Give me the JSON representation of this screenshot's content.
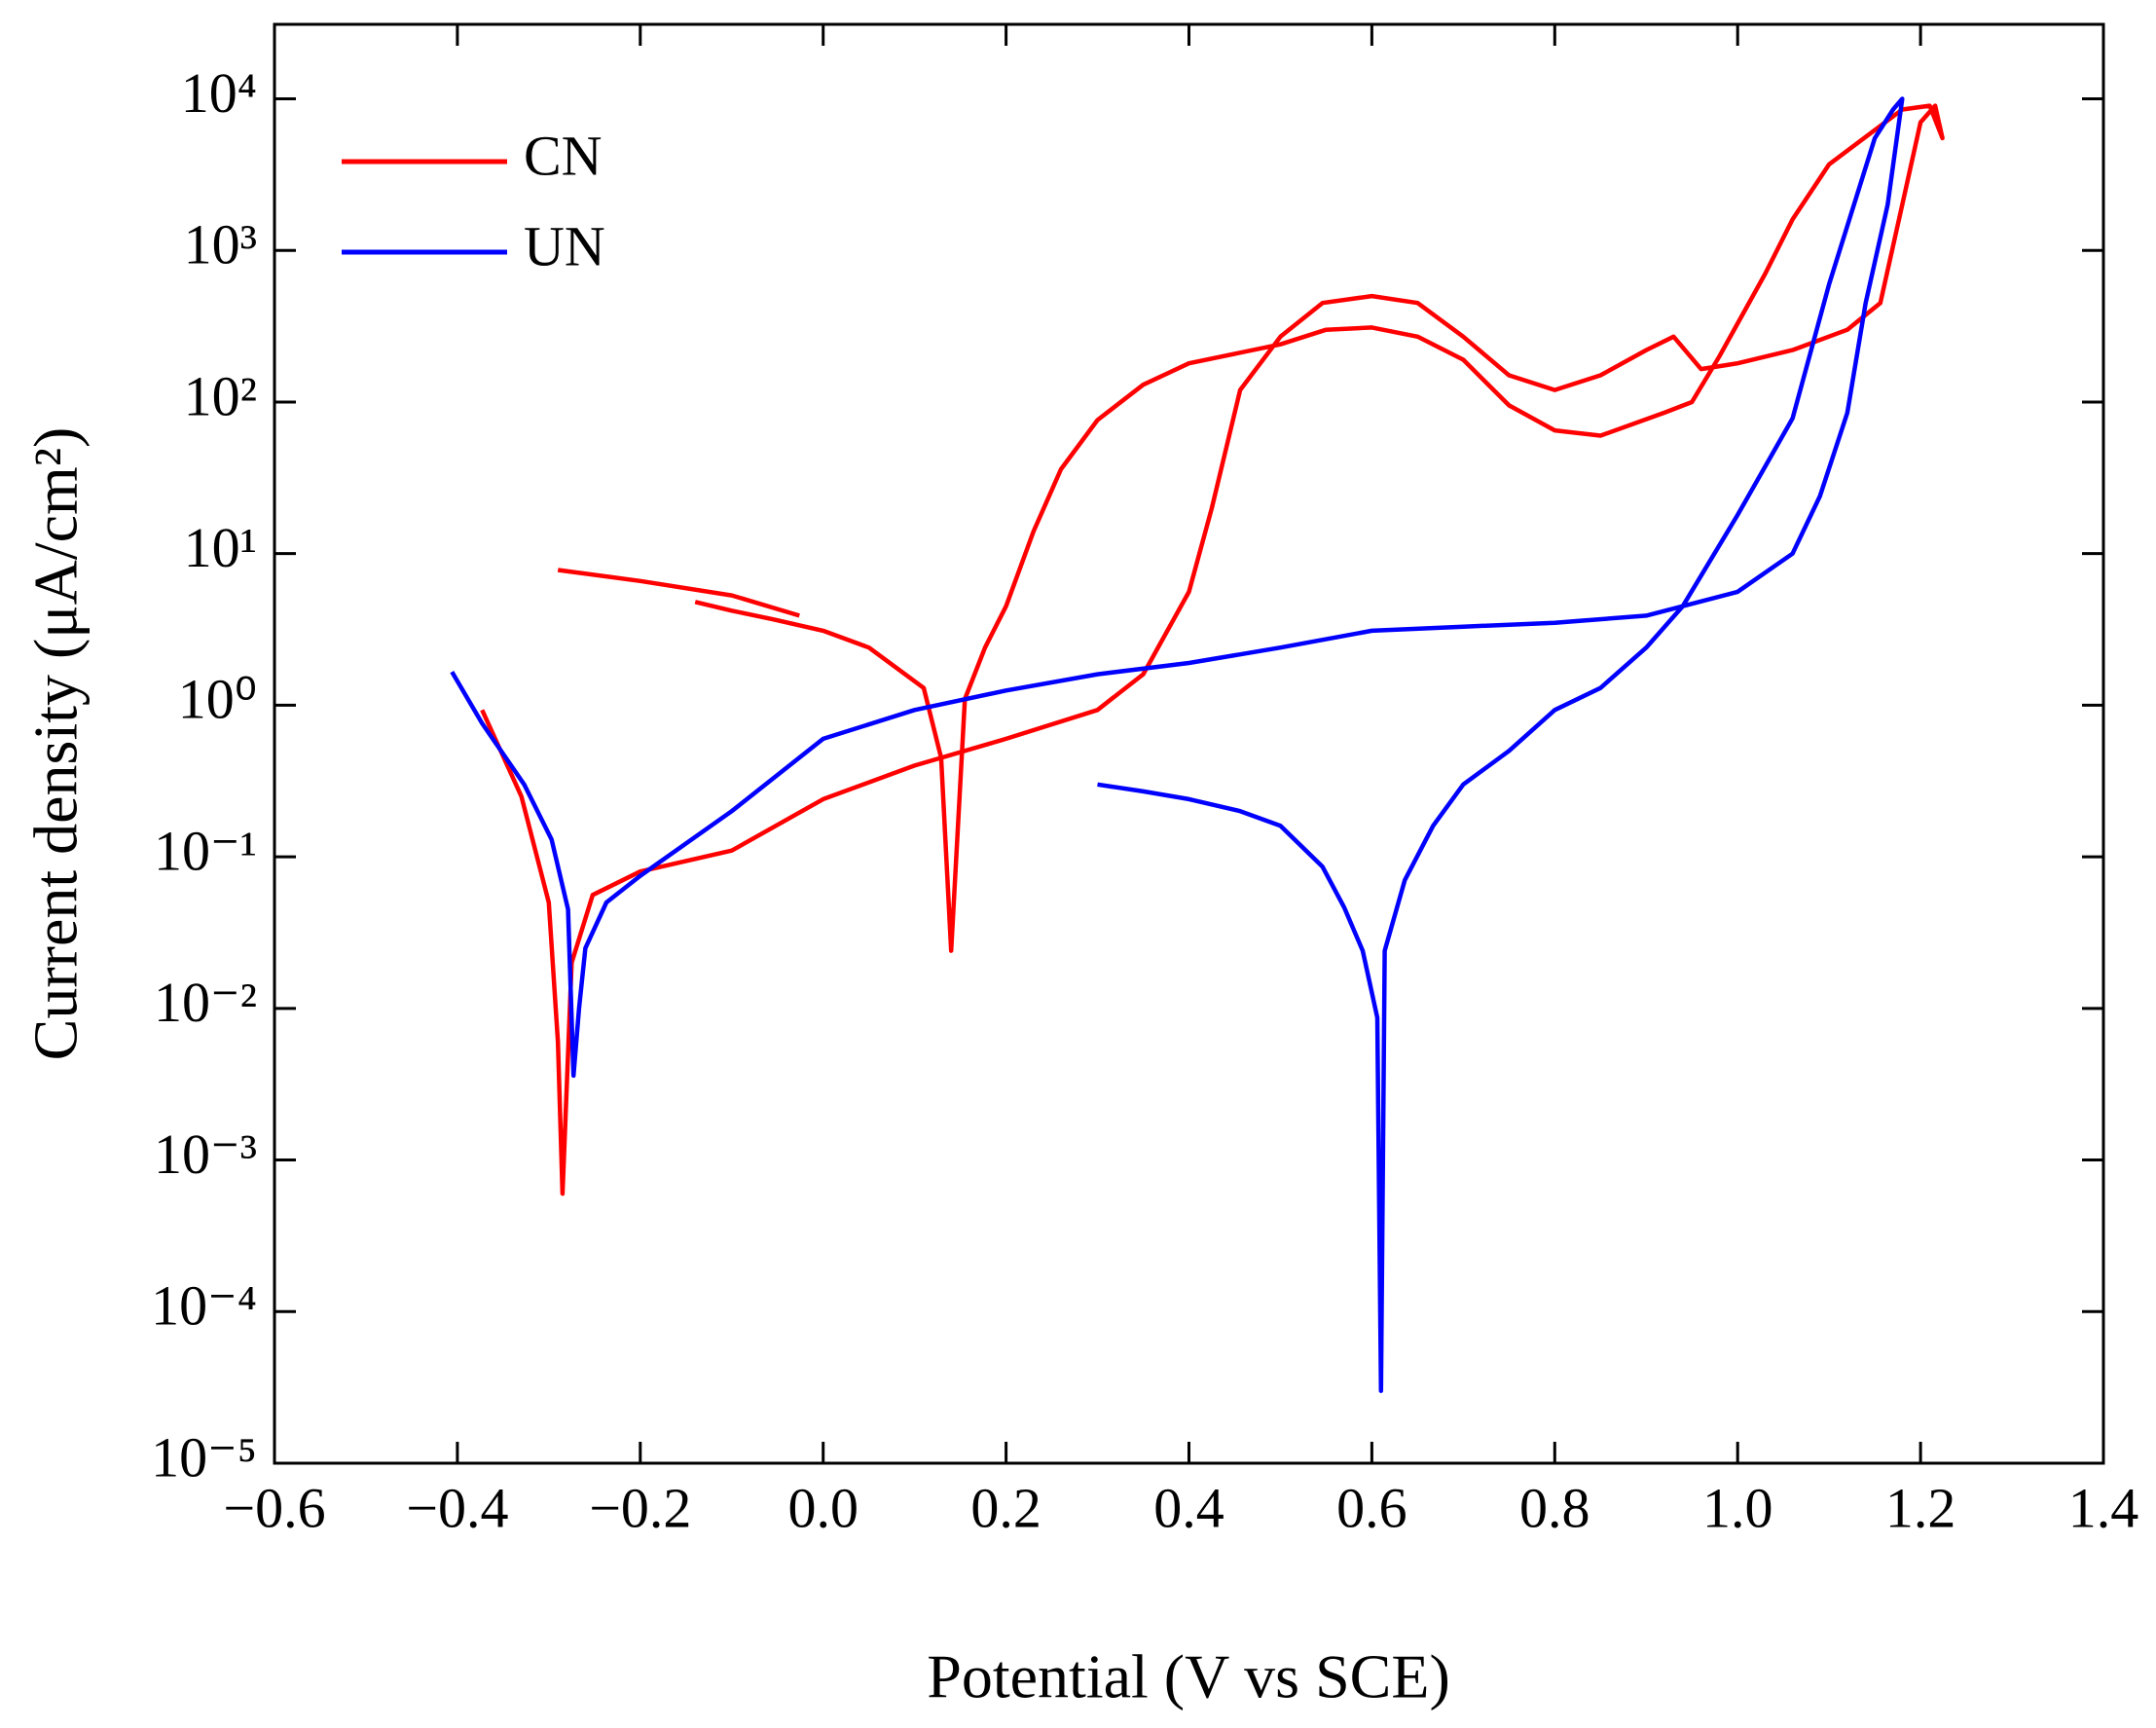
{
  "chart_data": {
    "type": "line",
    "x_label": "Potential (V vs SCE)",
    "y_label": "Current density (μA/cm²)",
    "xlim": [
      -0.6,
      1.4
    ],
    "xticks": [
      {
        "value": -0.6,
        "label": "−0.6"
      },
      {
        "value": -0.4,
        "label": "−0.4"
      },
      {
        "value": -0.2,
        "label": "−0.2"
      },
      {
        "value": 0,
        "label": "0.0"
      },
      0.2,
      0.4,
      0.6,
      0.8,
      {
        "value": 1,
        "label": "1.0"
      },
      1.2,
      1.4
    ],
    "ylim": [
      1e-05,
      31000
    ],
    "y_scale": "log",
    "yticks": [
      {
        "value": 1e-05,
        "label": "10⁻⁵"
      },
      {
        "value": 0.0001,
        "label": "10⁻⁴"
      },
      {
        "value": 0.001,
        "label": "10⁻³"
      },
      {
        "value": 0.01,
        "label": "10⁻²"
      },
      {
        "value": 0.1,
        "label": "10⁻¹"
      },
      {
        "value": 1,
        "label": "10⁰"
      },
      {
        "value": 10,
        "label": "10¹"
      },
      {
        "value": 100,
        "label": "10²"
      },
      {
        "value": 1000,
        "label": "10³"
      },
      {
        "value": 10000,
        "label": "10⁴"
      }
    ],
    "legend": "upper left",
    "series": [
      {
        "name": "CN",
        "color": "#ff0000",
        "x": [
          -0.373,
          -0.33,
          -0.3,
          -0.29,
          -0.285,
          -0.275,
          -0.252,
          -0.2,
          -0.1,
          0,
          0.1,
          0.2,
          0.3,
          0.35,
          0.4,
          0.425,
          0.456,
          0.5,
          0.546,
          0.6,
          0.65,
          0.7,
          0.75,
          0.8,
          0.85,
          0.9,
          0.93,
          0.96,
          1.0,
          1.06,
          1.12,
          1.156,
          1.18,
          1.2,
          1.216,
          1.224,
          1.21,
          1.18,
          1.1,
          1.06,
          1.03,
          0.98,
          0.95,
          0.92,
          0.85,
          0.8,
          0.75,
          0.7,
          0.65,
          0.6,
          0.55,
          0.5,
          0.4,
          0.35,
          0.3,
          0.26,
          0.23,
          0.2,
          0.177,
          0.155,
          0.14,
          0.129,
          0.11,
          0.05,
          0,
          -0.056,
          -0.1,
          -0.14,
          null,
          -0.29,
          -0.2,
          -0.1,
          -0.026
        ],
        "values": [
          0.93,
          0.25,
          0.05,
          0.006,
          0.0006,
          0.02,
          0.056,
          0.08,
          0.11,
          0.24,
          0.4,
          0.6,
          0.93,
          1.6,
          5.6,
          20,
          120,
          270,
          450,
          500,
          450,
          270,
          150,
          120,
          150,
          220,
          270,
          165,
          180,
          220,
          300,
          450,
          2000,
          7000,
          9000,
          5500,
          9000,
          8500,
          3700,
          1600,
          700,
          200,
          100,
          85,
          60,
          65,
          95,
          190,
          270,
          310,
          300,
          240,
          180,
          130,
          76,
          36,
          14,
          4.5,
          2.4,
          1.1,
          0.024,
          0.45,
          1.3,
          2.4,
          3.1,
          3.7,
          4.2,
          4.8,
          null,
          7.8,
          6.6,
          5.3,
          3.9
        ]
      },
      {
        "name": "UN",
        "color": "#0000ff",
        "x": [
          -0.406,
          -0.373,
          -0.327,
          -0.297,
          -0.279,
          -0.273,
          -0.267,
          -0.26,
          -0.237,
          -0.2,
          -0.1,
          0,
          0.1,
          0.2,
          0.3,
          0.4,
          0.5,
          0.6,
          0.7,
          0.8,
          0.9,
          1.0,
          1.06,
          1.09,
          1.12,
          1.14,
          1.164,
          1.18,
          1.17,
          1.15,
          1.1,
          1.06,
          1.0,
          0.94,
          0.9,
          0.85,
          0.8,
          0.75,
          0.7,
          0.667,
          0.636,
          0.614,
          0.61,
          0.606,
          0.59,
          0.57,
          0.546,
          0.5,
          0.456,
          0.4,
          0.35,
          0.3
        ],
        "values": [
          1.66,
          0.76,
          0.3,
          0.13,
          0.045,
          0.0036,
          0.01,
          0.025,
          0.05,
          0.075,
          0.2,
          0.6,
          0.93,
          1.25,
          1.6,
          1.9,
          2.4,
          3.1,
          3.3,
          3.5,
          3.9,
          5.6,
          10,
          24,
          85,
          450,
          2000,
          10000,
          8500,
          5500,
          600,
          78,
          18,
          4.5,
          2.4,
          1.3,
          0.93,
          0.5,
          0.3,
          0.16,
          0.07,
          0.024,
          3e-05,
          0.0087,
          0.024,
          0.046,
          0.086,
          0.16,
          0.2,
          0.24,
          0.27,
          0.3
        ]
      }
    ]
  }
}
